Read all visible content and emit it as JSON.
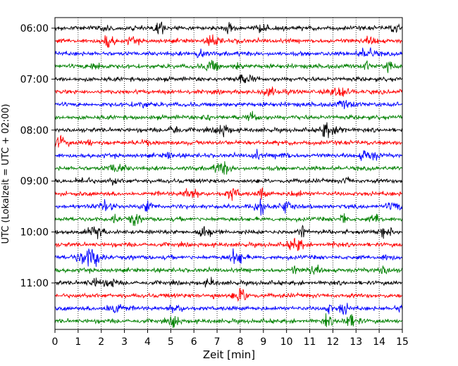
{
  "chart_data": {
    "type": "line",
    "title": "",
    "xlabel": "Zeit  [min]",
    "ylabel": "UTC (Lokalzeit = UTC + 02:00)",
    "xlim": [
      0,
      15
    ],
    "x_ticks": [
      "0",
      "1",
      "2",
      "3",
      "4",
      "5",
      "6",
      "7",
      "8",
      "9",
      "10",
      "11",
      "12",
      "13",
      "14",
      "15"
    ],
    "y_tick_labels": [
      "06:00",
      "07:00",
      "08:00",
      "09:00",
      "10:00",
      "11:00"
    ],
    "y_range": [
      "06:00",
      "11:45"
    ],
    "trace_interval_min": 15,
    "grid": "x-dotted",
    "trace_colors": [
      "#000000",
      "#ff0000",
      "#0000ff",
      "#008000"
    ],
    "traces": [
      {
        "start": "06:00",
        "color": "#000000"
      },
      {
        "start": "06:15",
        "color": "#ff0000"
      },
      {
        "start": "06:30",
        "color": "#0000ff"
      },
      {
        "start": "06:45",
        "color": "#008000"
      },
      {
        "start": "07:00",
        "color": "#000000"
      },
      {
        "start": "07:15",
        "color": "#ff0000"
      },
      {
        "start": "07:30",
        "color": "#0000ff"
      },
      {
        "start": "07:45",
        "color": "#008000"
      },
      {
        "start": "08:00",
        "color": "#000000"
      },
      {
        "start": "08:15",
        "color": "#ff0000"
      },
      {
        "start": "08:30",
        "color": "#0000ff"
      },
      {
        "start": "08:45",
        "color": "#008000"
      },
      {
        "start": "09:00",
        "color": "#000000"
      },
      {
        "start": "09:15",
        "color": "#ff0000"
      },
      {
        "start": "09:30",
        "color": "#0000ff"
      },
      {
        "start": "09:45",
        "color": "#008000"
      },
      {
        "start": "10:00",
        "color": "#000000"
      },
      {
        "start": "10:15",
        "color": "#ff0000"
      },
      {
        "start": "10:30",
        "color": "#0000ff"
      },
      {
        "start": "10:45",
        "color": "#008000"
      },
      {
        "start": "11:00",
        "color": "#000000"
      },
      {
        "start": "11:15",
        "color": "#ff0000"
      },
      {
        "start": "11:30",
        "color": "#0000ff"
      },
      {
        "start": "11:45",
        "color": "#008000"
      }
    ]
  }
}
